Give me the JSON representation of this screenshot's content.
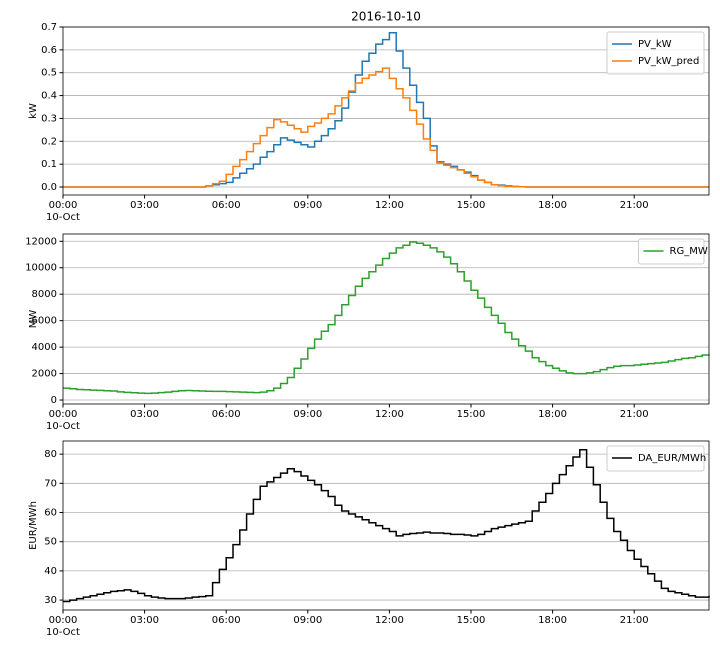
{
  "chart_data": [
    {
      "type": "step",
      "title": "2016-10-10",
      "ylabel": "kW",
      "xdate": "10-Oct",
      "x": [
        0,
        0.25,
        0.5,
        0.75,
        1,
        1.25,
        1.5,
        1.75,
        2,
        2.25,
        2.5,
        2.75,
        3,
        3.25,
        3.5,
        3.75,
        4,
        4.25,
        4.5,
        4.75,
        5,
        5.25,
        5.5,
        5.75,
        6,
        6.25,
        6.5,
        6.75,
        7,
        7.25,
        7.5,
        7.75,
        8,
        8.25,
        8.5,
        8.75,
        9,
        9.25,
        9.5,
        9.75,
        10,
        10.25,
        10.5,
        10.75,
        11,
        11.25,
        11.5,
        11.75,
        12,
        12.25,
        12.5,
        12.75,
        13,
        13.25,
        13.5,
        13.75,
        14,
        14.25,
        14.5,
        14.75,
        15,
        15.25,
        15.5,
        15.75,
        16,
        16.25,
        16.5,
        16.75,
        17,
        17.25,
        17.5,
        17.75,
        18,
        18.25,
        18.5,
        18.75,
        19,
        19.25,
        19.5,
        19.75,
        20,
        20.25,
        20.5,
        20.75,
        21,
        21.25,
        21.5,
        21.75,
        22,
        22.25,
        22.5,
        22.75,
        23,
        23.25,
        23.5,
        23.75
      ],
      "series": [
        {
          "name": "PV_kW",
          "color": "#1f77b4",
          "values": [
            0,
            0,
            0,
            0,
            0,
            0,
            0,
            0,
            0,
            0,
            0,
            0,
            0,
            0,
            0,
            0,
            0,
            0,
            0,
            0,
            0,
            0.005,
            0.01,
            0.015,
            0.02,
            0.04,
            0.06,
            0.08,
            0.1,
            0.13,
            0.155,
            0.185,
            0.215,
            0.205,
            0.195,
            0.185,
            0.175,
            0.2,
            0.225,
            0.255,
            0.29,
            0.345,
            0.415,
            0.49,
            0.55,
            0.585,
            0.625,
            0.645,
            0.675,
            0.595,
            0.52,
            0.445,
            0.37,
            0.3,
            0.18,
            0.11,
            0.1,
            0.09,
            0.075,
            0.065,
            0.05,
            0.03,
            0.02,
            0.01,
            0.008,
            0.005,
            0.002,
            0.001,
            0,
            0,
            0,
            0,
            0,
            0,
            0,
            0,
            0,
            0,
            0,
            0,
            0,
            0,
            0,
            0,
            0,
            0,
            0,
            0,
            0,
            0,
            0,
            0,
            0,
            0,
            0,
            0
          ]
        },
        {
          "name": "PV_kW_pred",
          "color": "#ff7f0e",
          "values": [
            0,
            0,
            0,
            0,
            0,
            0,
            0,
            0,
            0,
            0,
            0,
            0,
            0,
            0,
            0,
            0,
            0,
            0,
            0,
            0,
            0,
            0.005,
            0.015,
            0.025,
            0.055,
            0.09,
            0.12,
            0.155,
            0.19,
            0.225,
            0.26,
            0.295,
            0.285,
            0.27,
            0.255,
            0.24,
            0.265,
            0.28,
            0.3,
            0.32,
            0.355,
            0.39,
            0.42,
            0.455,
            0.475,
            0.49,
            0.505,
            0.52,
            0.475,
            0.43,
            0.39,
            0.335,
            0.275,
            0.21,
            0.16,
            0.105,
            0.095,
            0.085,
            0.075,
            0.06,
            0.045,
            0.03,
            0.02,
            0.01,
            0.006,
            0.003,
            0.002,
            0.001,
            0,
            0,
            0,
            0,
            0,
            0,
            0,
            0,
            0,
            0,
            0,
            0,
            0,
            0,
            0,
            0,
            0,
            0,
            0,
            0,
            0,
            0,
            0,
            0,
            0,
            0,
            0,
            0
          ]
        }
      ],
      "xlim": [
        0,
        23.75
      ],
      "xticks": [
        {
          "value": 0,
          "label": "00:00"
        },
        {
          "value": 3,
          "label": "03:00"
        },
        {
          "value": 6,
          "label": "06:00"
        },
        {
          "value": 9,
          "label": "09:00"
        },
        {
          "value": 12,
          "label": "12:00"
        },
        {
          "value": 15,
          "label": "15:00"
        },
        {
          "value": 18,
          "label": "18:00"
        },
        {
          "value": 21,
          "label": "21:00"
        }
      ],
      "ylim": [
        -0.035,
        0.7
      ],
      "yticks": [
        {
          "value": 0,
          "label": "0.0"
        },
        0.1,
        0.2,
        0.3,
        0.4,
        0.5,
        0.6,
        0.7
      ],
      "grid": "y",
      "legend": "upper right"
    },
    {
      "type": "step",
      "ylabel": "MW",
      "xdate": "10-Oct",
      "x": [
        0,
        0.25,
        0.5,
        0.75,
        1,
        1.25,
        1.5,
        1.75,
        2,
        2.25,
        2.5,
        2.75,
        3,
        3.25,
        3.5,
        3.75,
        4,
        4.25,
        4.5,
        4.75,
        5,
        5.25,
        5.5,
        5.75,
        6,
        6.25,
        6.5,
        6.75,
        7,
        7.25,
        7.5,
        7.75,
        8,
        8.25,
        8.5,
        8.75,
        9,
        9.25,
        9.5,
        9.75,
        10,
        10.25,
        10.5,
        10.75,
        11,
        11.25,
        11.5,
        11.75,
        12,
        12.25,
        12.5,
        12.75,
        13,
        13.25,
        13.5,
        13.75,
        14,
        14.25,
        14.5,
        14.75,
        15,
        15.25,
        15.5,
        15.75,
        16,
        16.25,
        16.5,
        16.75,
        17,
        17.25,
        17.5,
        17.75,
        18,
        18.25,
        18.5,
        18.75,
        19,
        19.25,
        19.5,
        19.75,
        20,
        20.25,
        20.5,
        20.75,
        21,
        21.25,
        21.5,
        21.75,
        22,
        22.25,
        22.5,
        22.75,
        23,
        23.25,
        23.5,
        23.75
      ],
      "series": [
        {
          "name": "RG_MW",
          "color": "#2ca02c",
          "values": [
            900,
            850,
            800,
            780,
            750,
            730,
            700,
            680,
            620,
            580,
            550,
            520,
            500,
            520,
            560,
            600,
            650,
            700,
            720,
            700,
            680,
            660,
            650,
            650,
            640,
            620,
            600,
            580,
            560,
            600,
            700,
            900,
            1250,
            1700,
            2400,
            3100,
            3900,
            4600,
            5200,
            5700,
            6400,
            7200,
            7900,
            8600,
            9200,
            9700,
            10200,
            10700,
            11100,
            11500,
            11700,
            11950,
            11850,
            11700,
            11500,
            11200,
            10800,
            10300,
            9700,
            9000,
            8300,
            7700,
            7000,
            6400,
            5800,
            5100,
            4600,
            4100,
            3700,
            3200,
            2900,
            2600,
            2400,
            2200,
            2050,
            2000,
            2000,
            2050,
            2150,
            2300,
            2450,
            2550,
            2600,
            2600,
            2650,
            2700,
            2750,
            2800,
            2850,
            2950,
            3050,
            3150,
            3200,
            3300,
            3400,
            3450
          ]
        }
      ],
      "xlim": [
        0,
        23.75
      ],
      "xticks": [
        {
          "value": 0,
          "label": "00:00"
        },
        {
          "value": 3,
          "label": "03:00"
        },
        {
          "value": 6,
          "label": "06:00"
        },
        {
          "value": 9,
          "label": "09:00"
        },
        {
          "value": 12,
          "label": "12:00"
        },
        {
          "value": 15,
          "label": "15:00"
        },
        {
          "value": 18,
          "label": "18:00"
        },
        {
          "value": 21,
          "label": "21:00"
        }
      ],
      "ylim": [
        -300,
        12550
      ],
      "yticks": [
        0,
        2000,
        4000,
        6000,
        8000,
        10000,
        12000
      ],
      "grid": "y",
      "legend": "upper right"
    },
    {
      "type": "step",
      "ylabel": "EUR/MWh",
      "xdate": "10-Oct",
      "x": [
        0,
        0.25,
        0.5,
        0.75,
        1,
        1.25,
        1.5,
        1.75,
        2,
        2.25,
        2.5,
        2.75,
        3,
        3.25,
        3.5,
        3.75,
        4,
        4.25,
        4.5,
        4.75,
        5,
        5.25,
        5.5,
        5.75,
        6,
        6.25,
        6.5,
        6.75,
        7,
        7.25,
        7.5,
        7.75,
        8,
        8.25,
        8.5,
        8.75,
        9,
        9.25,
        9.5,
        9.75,
        10,
        10.25,
        10.5,
        10.75,
        11,
        11.25,
        11.5,
        11.75,
        12,
        12.25,
        12.5,
        12.75,
        13,
        13.25,
        13.5,
        13.75,
        14,
        14.25,
        14.5,
        14.75,
        15,
        15.25,
        15.5,
        15.75,
        16,
        16.25,
        16.5,
        16.75,
        17,
        17.25,
        17.5,
        17.75,
        18,
        18.25,
        18.5,
        18.75,
        19,
        19.25,
        19.5,
        19.75,
        20,
        20.25,
        20.5,
        20.75,
        21,
        21.25,
        21.5,
        21.75,
        22,
        22.25,
        22.5,
        22.75,
        23,
        23.25,
        23.5,
        23.75
      ],
      "series": [
        {
          "name": "DA_EUR/MWh",
          "color": "#000000",
          "values": [
            29.5,
            30,
            30.5,
            31,
            31.5,
            32,
            32.5,
            33,
            33.2,
            33.5,
            33,
            32.3,
            31.5,
            31,
            30.7,
            30.5,
            30.5,
            30.5,
            30.7,
            31,
            31.2,
            31.5,
            36,
            40.5,
            44.5,
            49,
            54,
            59.5,
            64.5,
            69,
            70.5,
            72,
            73.5,
            75,
            74,
            72.5,
            71,
            69.5,
            67.5,
            65.5,
            62.5,
            60.5,
            59.5,
            58.5,
            57.5,
            56.5,
            55.5,
            54.5,
            53.5,
            52,
            52.5,
            52.8,
            53,
            53.3,
            53,
            53,
            52.8,
            52.5,
            52.5,
            52.3,
            52,
            52.5,
            53.5,
            54.5,
            55,
            55.5,
            56,
            56.5,
            57,
            60.5,
            63.5,
            66.5,
            70,
            73,
            76,
            79,
            81.5,
            75.5,
            69.5,
            63.5,
            58,
            53.5,
            50.5,
            47,
            44,
            41.5,
            39,
            36.5,
            34,
            33,
            32.5,
            32,
            31.5,
            31,
            31,
            31.5
          ]
        }
      ],
      "xlim": [
        0,
        23.75
      ],
      "xticks": [
        {
          "value": 0,
          "label": "00:00"
        },
        {
          "value": 3,
          "label": "03:00"
        },
        {
          "value": 6,
          "label": "06:00"
        },
        {
          "value": 9,
          "label": "09:00"
        },
        {
          "value": 12,
          "label": "12:00"
        },
        {
          "value": 15,
          "label": "15:00"
        },
        {
          "value": 18,
          "label": "18:00"
        },
        {
          "value": 21,
          "label": "21:00"
        }
      ],
      "ylim": [
        26.6,
        84.5
      ],
      "yticks": [
        30,
        40,
        50,
        60,
        70,
        80
      ],
      "grid": "y",
      "legend": "upper right"
    }
  ]
}
